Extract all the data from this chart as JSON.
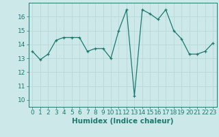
{
  "x": [
    0,
    1,
    2,
    3,
    4,
    5,
    6,
    7,
    8,
    9,
    10,
    11,
    12,
    13,
    14,
    15,
    16,
    17,
    18,
    19,
    20,
    21,
    22,
    23
  ],
  "y": [
    13.5,
    12.9,
    13.3,
    14.3,
    14.5,
    14.5,
    14.5,
    13.5,
    13.7,
    13.7,
    13.0,
    15.0,
    16.5,
    10.3,
    16.5,
    16.2,
    15.8,
    16.5,
    15.0,
    14.4,
    13.3,
    13.3,
    13.5,
    14.1
  ],
  "line_color": "#1a7a6e",
  "bg_color": "#cce8e8",
  "grid_color": "#b8d8d8",
  "xlabel": "Humidex (Indice chaleur)",
  "ylim": [
    9.5,
    17.0
  ],
  "xlim": [
    -0.5,
    23.5
  ],
  "yticks": [
    10,
    11,
    12,
    13,
    14,
    15,
    16
  ],
  "xticks": [
    0,
    1,
    2,
    3,
    4,
    5,
    6,
    7,
    8,
    9,
    10,
    11,
    12,
    13,
    14,
    15,
    16,
    17,
    18,
    19,
    20,
    21,
    22,
    23
  ],
  "tick_fontsize": 6.5,
  "xlabel_fontsize": 7.5,
  "marker_size": 3.5,
  "linewidth": 0.9
}
